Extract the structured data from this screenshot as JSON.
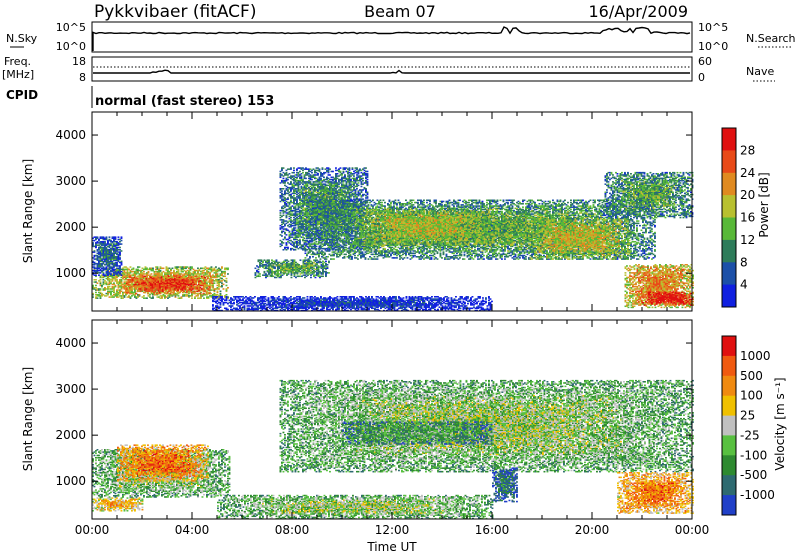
{
  "header": {
    "station": "Pykkvibaer (fitACF)",
    "beam": "Beam 07",
    "date": "16/Apr/2009"
  },
  "top_panel": {
    "left_label": "N.Sky",
    "right_label": "N.Search",
    "left_ticks": [
      "10^5",
      "10^0"
    ],
    "right_ticks": [
      "10^5",
      "10^0"
    ]
  },
  "freq_panel": {
    "left_label_line1": "Freq.",
    "left_label_line2": "[MHz]",
    "right_label": "Nave",
    "left_ticks": [
      "18",
      "8"
    ],
    "right_ticks": [
      "60",
      "0"
    ]
  },
  "cpid": {
    "label": "CPID",
    "mode": "normal (fast stereo) 153"
  },
  "chart_data": [
    {
      "type": "heatmap",
      "title": "",
      "quantity": "Power",
      "ylabel": "Slant Range [km]",
      "xlabel": "Time UT",
      "x_range_hours": [
        0,
        24
      ],
      "ylim": [
        180,
        4500
      ],
      "yticks": [
        1000,
        2000,
        3000,
        4000
      ],
      "colorbar": {
        "label": "Power [dB]",
        "ticks": [
          4,
          8,
          12,
          16,
          20,
          24,
          28
        ],
        "colors": [
          "#1020e0",
          "#1c50a8",
          "#2e7c5a",
          "#58b838",
          "#b8c030",
          "#e08a20",
          "#e84a18",
          "#e01010"
        ]
      },
      "bands": [
        {
          "t0": 0.0,
          "t1": 5.4,
          "r0": 450,
          "r1": 1150,
          "level": 0.62
        },
        {
          "t0": 1.3,
          "t1": 4.8,
          "r0": 550,
          "r1": 950,
          "level": 0.85
        },
        {
          "t0": 0.0,
          "t1": 1.2,
          "r0": 950,
          "r1": 1800,
          "level": 0.25
        },
        {
          "t0": 7.5,
          "t1": 11.0,
          "r0": 1500,
          "r1": 3300,
          "level": 0.35
        },
        {
          "t0": 8.5,
          "t1": 22.5,
          "r0": 1300,
          "r1": 2600,
          "level": 0.42
        },
        {
          "t0": 10.5,
          "t1": 16.0,
          "r0": 1600,
          "r1": 2400,
          "level": 0.55
        },
        {
          "t0": 17.5,
          "t1": 21.5,
          "r0": 1300,
          "r1": 2200,
          "level": 0.58
        },
        {
          "t0": 20.5,
          "t1": 24.0,
          "r0": 2200,
          "r1": 3200,
          "level": 0.4
        },
        {
          "t0": 21.3,
          "t1": 24.0,
          "r0": 250,
          "r1": 1200,
          "level": 0.7
        },
        {
          "t0": 22.0,
          "t1": 24.0,
          "r0": 300,
          "r1": 600,
          "level": 0.95
        },
        {
          "t0": 4.8,
          "t1": 16.0,
          "r0": 180,
          "r1": 500,
          "level": 0.12
        },
        {
          "t0": 6.5,
          "t1": 9.5,
          "r0": 900,
          "r1": 1300,
          "level": 0.4
        }
      ]
    },
    {
      "type": "heatmap",
      "title": "",
      "quantity": "Velocity",
      "ylabel": "Slant Range [km]",
      "xlabel": "Time UT",
      "x_range_hours": [
        0,
        24
      ],
      "ylim": [
        180,
        4500
      ],
      "yticks": [
        1000,
        2000,
        3000,
        4000
      ],
      "xtick_labels": [
        "00:00",
        "04:00",
        "08:00",
        "12:00",
        "16:00",
        "20:00",
        "00:00"
      ],
      "colorbar": {
        "label": "Velocity [m s⁻¹]",
        "ticks": [
          1000,
          500,
          100,
          25,
          -25,
          -100,
          -500,
          -1000
        ],
        "colors": [
          "#2040c8",
          "#2e6a70",
          "#2e8a30",
          "#58c040",
          "#c0c0c0",
          "#f0c000",
          "#f08a10",
          "#f05a10",
          "#e01010"
        ]
      },
      "bands": [
        {
          "t0": 0.0,
          "t1": 2.0,
          "r0": 350,
          "r1": 650,
          "level": 0.66
        },
        {
          "t0": 0.0,
          "t1": 5.5,
          "r0": 650,
          "r1": 1700,
          "level": 0.45
        },
        {
          "t0": 1.0,
          "t1": 4.6,
          "r0": 1000,
          "r1": 1800,
          "level": 0.78
        },
        {
          "t0": 7.5,
          "t1": 24.0,
          "r0": 1200,
          "r1": 3200,
          "level": 0.45
        },
        {
          "t0": 10.0,
          "t1": 16.0,
          "r0": 1800,
          "r1": 2300,
          "level": 0.32
        },
        {
          "t0": 16.0,
          "t1": 17.0,
          "r0": 550,
          "r1": 1300,
          "level": 0.2
        },
        {
          "t0": 21.0,
          "t1": 24.0,
          "r0": 300,
          "r1": 1200,
          "level": 0.75
        },
        {
          "t0": 5.0,
          "t1": 16.0,
          "r0": 180,
          "r1": 700,
          "level": 0.45
        }
      ]
    }
  ]
}
